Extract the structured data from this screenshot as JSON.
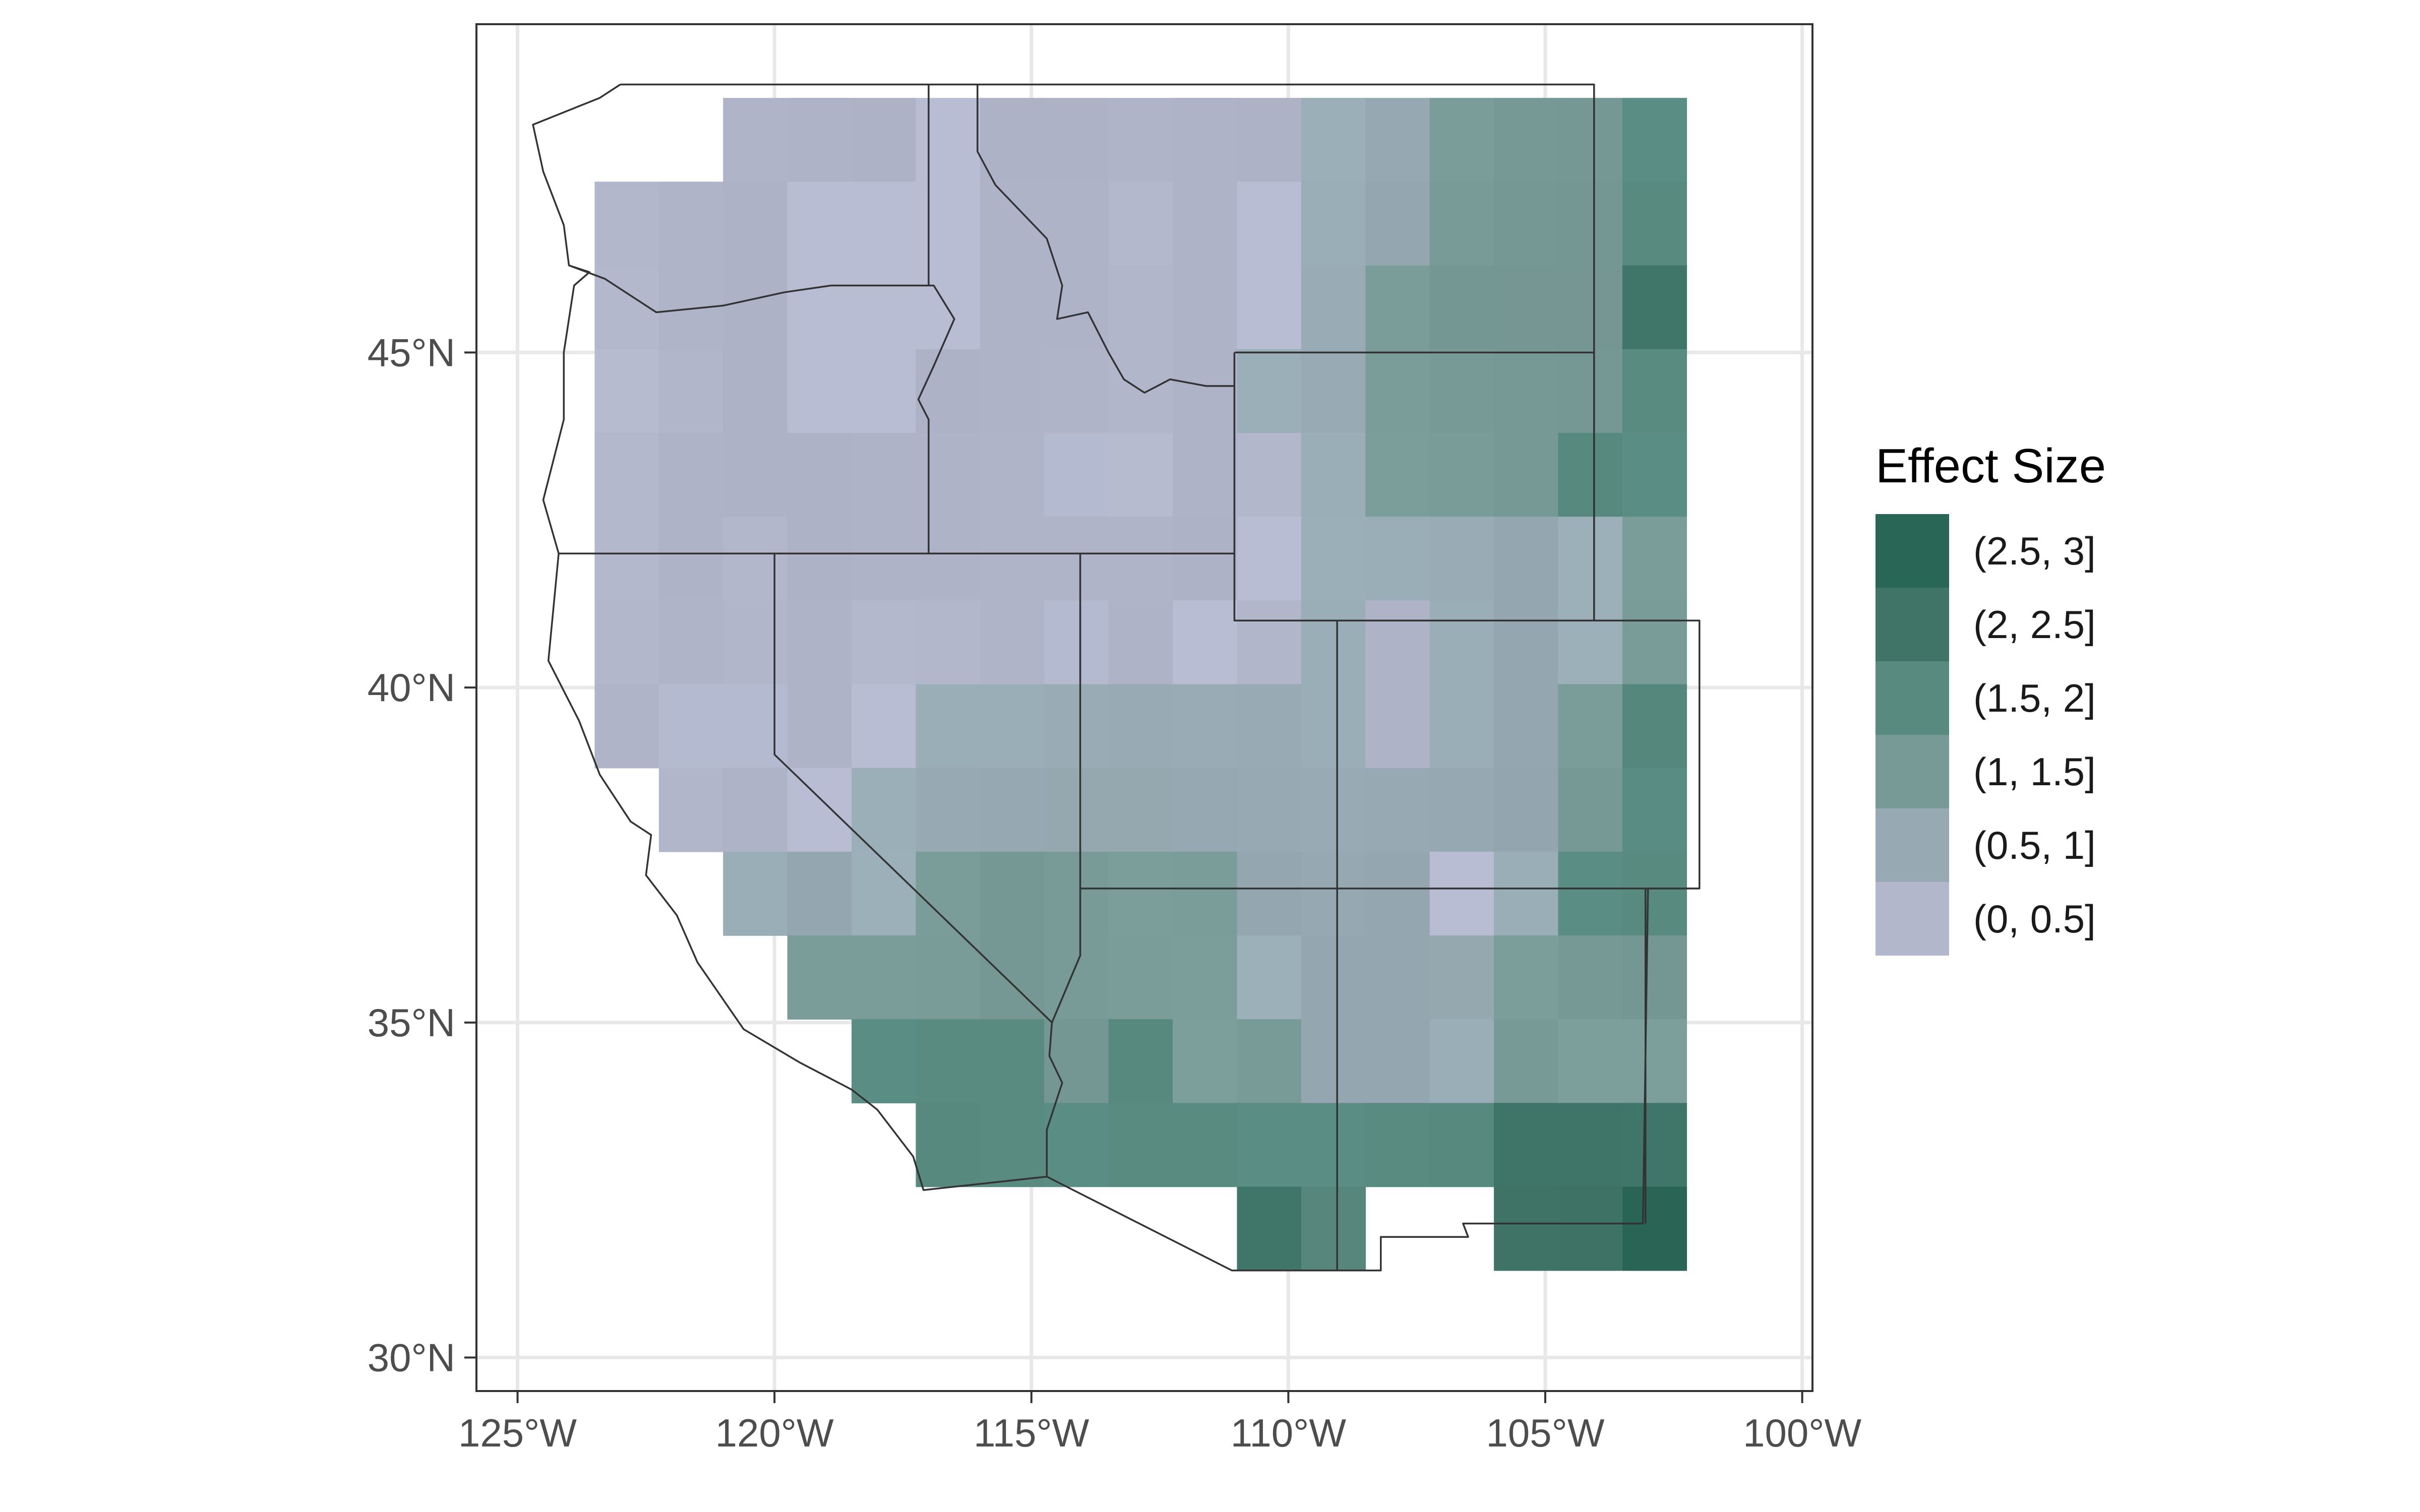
{
  "map": {
    "type": "heatmap",
    "x_ticks": [
      "125°W",
      "120°W",
      "115°W",
      "110°W",
      "105°W",
      "100°W"
    ],
    "y_ticks": [
      "30°N",
      "35°N",
      "40°N",
      "45°N"
    ],
    "x_range_deg": [
      -125.8,
      -99.8
    ],
    "y_range_deg": [
      29.5,
      49.9
    ],
    "grid": true,
    "legend_position": "right",
    "legend_title": "Effect Size",
    "classes": [
      {
        "label": "(2.5, 3]",
        "color": "#2a6656"
      },
      {
        "label": "(2, 2.5]",
        "color": "#3f7467"
      },
      {
        "label": "(1.5, 2]",
        "color": "#588a80"
      },
      {
        "label": "(1, 1.5]",
        "color": "#789a97"
      },
      {
        "label": "(0.5, 1]",
        "color": "#97aab3"
      },
      {
        "label": "(0, 0.5]",
        "color": "#b2b7cc"
      }
    ],
    "cell_size_deg": 1.25,
    "columns_lon_start": -123.5,
    "rows_lat_top": 48.8,
    "grid_values": [
      [
        null,
        null,
        0.35,
        0.4,
        0.45,
        0.5,
        0.45,
        0.45,
        0.35,
        0.4,
        0.45,
        0.55,
        0.8,
        1.1,
        1.3,
        1.35,
        1.55
      ],
      [
        0.25,
        0.35,
        0.45,
        0.5,
        0.5,
        0.5,
        0.4,
        0.4,
        0.2,
        0.4,
        0.5,
        0.6,
        0.9,
        1.2,
        1.35,
        1.4,
        1.75
      ],
      [
        0.2,
        0.35,
        0.45,
        0.5,
        0.5,
        0.5,
        0.4,
        0.4,
        0.3,
        0.4,
        0.5,
        0.65,
        1.1,
        1.4,
        1.45,
        1.45,
        2.1
      ],
      [
        0.1,
        0.3,
        0.45,
        0.5,
        0.5,
        0.45,
        0.4,
        0.35,
        0.3,
        0.4,
        0.55,
        0.7,
        1.1,
        1.25,
        1.3,
        1.35,
        1.7
      ],
      [
        0.2,
        0.4,
        0.45,
        0.45,
        0.4,
        0.4,
        0.35,
        0.15,
        0.1,
        0.4,
        0.25,
        0.6,
        1.05,
        1.15,
        1.3,
        1.8,
        1.6
      ],
      [
        0.2,
        0.4,
        0.25,
        0.45,
        0.4,
        0.4,
        0.35,
        0.35,
        0.35,
        0.45,
        0.5,
        0.55,
        0.6,
        0.65,
        0.9,
        1.0,
        1.1
      ],
      [
        0.25,
        0.35,
        0.3,
        0.4,
        0.2,
        0.25,
        0.35,
        0.15,
        0.4,
        0.5,
        0.3,
        0.6,
        0.4,
        0.6,
        0.9,
        1.0,
        1.15
      ],
      [
        0.35,
        0.15,
        0.15,
        0.4,
        0.5,
        0.6,
        0.6,
        0.65,
        0.7,
        0.65,
        0.7,
        0.6,
        0.4,
        0.6,
        0.9,
        1.1,
        1.9
      ],
      [
        null,
        0.3,
        0.4,
        0.5,
        0.55,
        0.75,
        0.8,
        0.85,
        0.85,
        0.8,
        0.75,
        0.7,
        0.75,
        0.8,
        0.95,
        1.3,
        1.65
      ],
      [
        null,
        null,
        0.6,
        0.9,
        1.0,
        1.1,
        1.35,
        1.2,
        1.05,
        1.1,
        0.9,
        0.8,
        0.9,
        0.5,
        0.6,
        1.6,
        1.75
      ],
      [
        null,
        null,
        null,
        1.1,
        1.1,
        1.15,
        1.35,
        1.2,
        1.1,
        1.05,
        1.0,
        0.9,
        0.9,
        0.85,
        1.05,
        1.3,
        1.4
      ],
      [
        null,
        null,
        null,
        null,
        1.6,
        1.7,
        1.7,
        1.4,
        1.8,
        1.5,
        1.2,
        0.9,
        0.9,
        0.6,
        1.25,
        1.5,
        1.5
      ],
      [
        null,
        null,
        null,
        null,
        null,
        1.8,
        1.7,
        1.6,
        1.7,
        1.7,
        1.6,
        1.6,
        1.7,
        1.8,
        2.2,
        2.2,
        2.1
      ],
      [
        null,
        null,
        null,
        null,
        null,
        null,
        null,
        null,
        null,
        null,
        2.1,
        1.95,
        null,
        null,
        2.3,
        2.4,
        2.9
      ]
    ]
  }
}
